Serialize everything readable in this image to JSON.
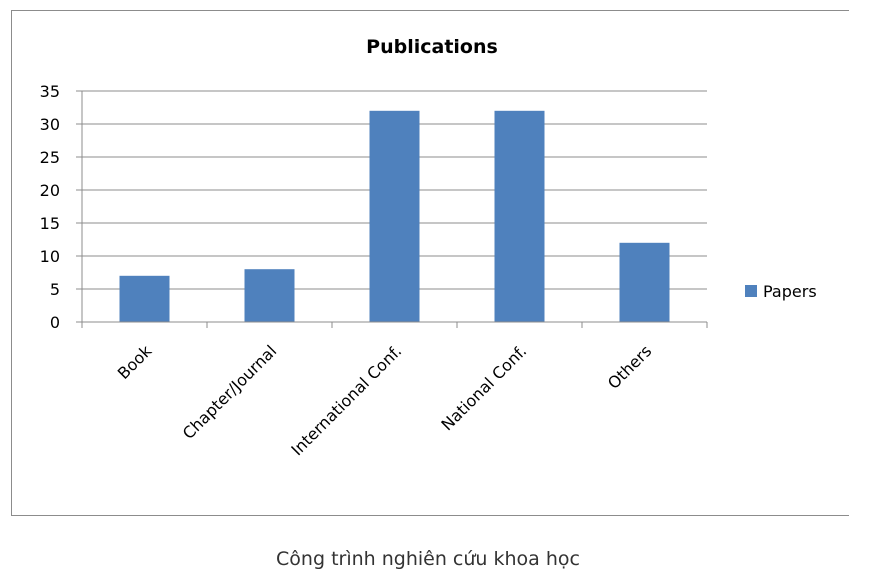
{
  "chart_data": {
    "type": "bar",
    "title": "Publications",
    "categories": [
      "Book",
      "Chapter/Journal",
      "International Conf.",
      "National Conf.",
      "Others"
    ],
    "series": [
      {
        "name": "Papers",
        "values": [
          7,
          8,
          32,
          32,
          12
        ],
        "color": "#4f81bd"
      }
    ],
    "ylim": [
      0,
      35
    ],
    "yticks": [
      0,
      5,
      10,
      15,
      20,
      25,
      30,
      35
    ],
    "grid": true,
    "legend": "right"
  },
  "caption": "Công trình nghiên cứu khoa học"
}
